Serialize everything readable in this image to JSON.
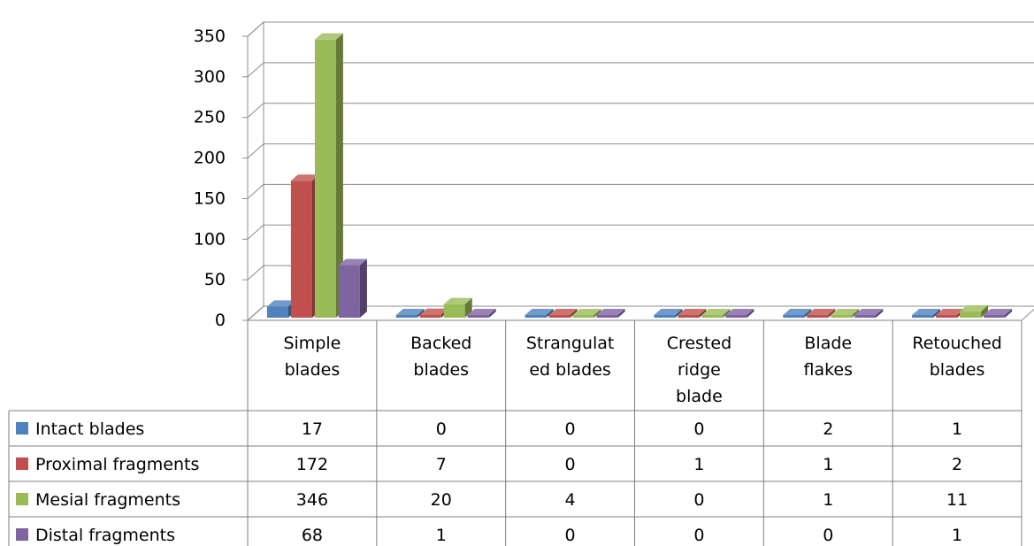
{
  "chart_data": {
    "type": "bar",
    "title": "",
    "xlabel": "",
    "ylabel": "",
    "ylim": [
      0,
      350
    ],
    "y_ticks": [
      "0",
      "50",
      "100",
      "150",
      "200",
      "250",
      "300",
      "350"
    ],
    "grid": true,
    "legend": "data-table-left",
    "categories": [
      [
        "Simple",
        "blades"
      ],
      [
        "Backed",
        "blades"
      ],
      [
        "Strangulat",
        "ed blades"
      ],
      [
        "Crested",
        "ridge",
        "blade"
      ],
      [
        "Blade",
        "flakes"
      ],
      [
        "Retouched",
        "blades"
      ]
    ],
    "series": [
      {
        "name": "Intact blades",
        "color": "#4F81BD",
        "values": [
          17,
          0,
          0,
          0,
          2,
          1
        ]
      },
      {
        "name": "Proximal fragments",
        "color": "#C0504D",
        "values": [
          172,
          7,
          0,
          1,
          1,
          2
        ]
      },
      {
        "name": "Mesial fragments",
        "color": "#9BBB59",
        "values": [
          346,
          20,
          4,
          0,
          1,
          11
        ]
      },
      {
        "name": "Distal fragments",
        "color": "#8064A2",
        "values": [
          68,
          1,
          0,
          0,
          0,
          1
        ]
      }
    ]
  }
}
